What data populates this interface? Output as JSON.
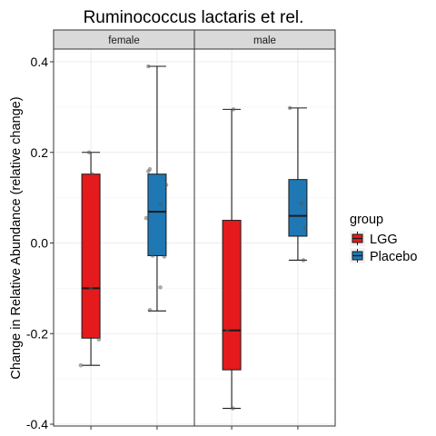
{
  "chart_data": {
    "type": "boxplot",
    "title": "Ruminococcus lactaris et rel.",
    "ylabel": "Change in Relative Abundance (relative change)",
    "xlabel": "",
    "ylim": [
      -0.4,
      0.4
    ],
    "yticks": [
      -0.4,
      -0.2,
      0.0,
      0.2,
      0.4
    ],
    "ytick_labels": [
      "-0.4",
      "-0.2",
      "0.0",
      "0.2",
      "0.4"
    ],
    "grid": true,
    "facets": [
      "female",
      "male"
    ],
    "legend": {
      "title": "group",
      "position": "right",
      "entries": [
        {
          "name": "LGG",
          "color": "#E41A1C"
        },
        {
          "name": "Placebo",
          "color": "#1F78B4"
        }
      ]
    },
    "boxes": [
      {
        "facet": "female",
        "group": "LGG",
        "min": -0.27,
        "q1": -0.21,
        "median": -0.1,
        "q3": 0.152,
        "max": 0.2
      },
      {
        "facet": "female",
        "group": "Placebo",
        "min": -0.15,
        "q1": -0.028,
        "median": 0.069,
        "q3": 0.152,
        "max": 0.39
      },
      {
        "facet": "male",
        "group": "LGG",
        "min": -0.365,
        "q1": -0.28,
        "median": -0.193,
        "q3": 0.05,
        "max": 0.295
      },
      {
        "facet": "male",
        "group": "Placebo",
        "min": -0.038,
        "q1": 0.015,
        "median": 0.06,
        "q3": 0.14,
        "max": 0.298
      }
    ],
    "points": [
      {
        "facet": "female",
        "group": "LGG",
        "jitter": -0.28,
        "y": -0.27
      },
      {
        "facet": "female",
        "group": "LGG",
        "jitter": 0.22,
        "y": -0.213
      },
      {
        "facet": "female",
        "group": "LGG",
        "jitter": 0.0,
        "y": -0.1
      },
      {
        "facet": "female",
        "group": "LGG",
        "jitter": -0.05,
        "y": 0.2
      },
      {
        "facet": "female",
        "group": "LGG",
        "jitter": 0.03,
        "y": 0.152
      },
      {
        "facet": "female",
        "group": "Placebo",
        "jitter": -0.24,
        "y": 0.39
      },
      {
        "facet": "female",
        "group": "Placebo",
        "jitter": -0.2,
        "y": 0.163
      },
      {
        "facet": "female",
        "group": "Placebo",
        "jitter": -0.24,
        "y": 0.158
      },
      {
        "facet": "female",
        "group": "Placebo",
        "jitter": 0.25,
        "y": 0.128
      },
      {
        "facet": "female",
        "group": "Placebo",
        "jitter": 0.1,
        "y": 0.085
      },
      {
        "facet": "female",
        "group": "Placebo",
        "jitter": -0.3,
        "y": 0.055
      },
      {
        "facet": "female",
        "group": "Placebo",
        "jitter": -0.12,
        "y": -0.028
      },
      {
        "facet": "female",
        "group": "Placebo",
        "jitter": 0.2,
        "y": -0.03
      },
      {
        "facet": "female",
        "group": "Placebo",
        "jitter": 0.09,
        "y": -0.098
      },
      {
        "facet": "female",
        "group": "Placebo",
        "jitter": -0.2,
        "y": -0.148
      },
      {
        "facet": "male",
        "group": "LGG",
        "jitter": 0.05,
        "y": 0.295
      },
      {
        "facet": "male",
        "group": "LGG",
        "jitter": -0.12,
        "y": -0.193
      },
      {
        "facet": "male",
        "group": "LGG",
        "jitter": 0.03,
        "y": -0.365
      },
      {
        "facet": "male",
        "group": "Placebo",
        "jitter": -0.22,
        "y": 0.298
      },
      {
        "facet": "male",
        "group": "Placebo",
        "jitter": 0.1,
        "y": 0.087
      },
      {
        "facet": "male",
        "group": "Placebo",
        "jitter": 0.2,
        "y": 0.033
      },
      {
        "facet": "male",
        "group": "Placebo",
        "jitter": 0.15,
        "y": -0.038
      }
    ]
  }
}
